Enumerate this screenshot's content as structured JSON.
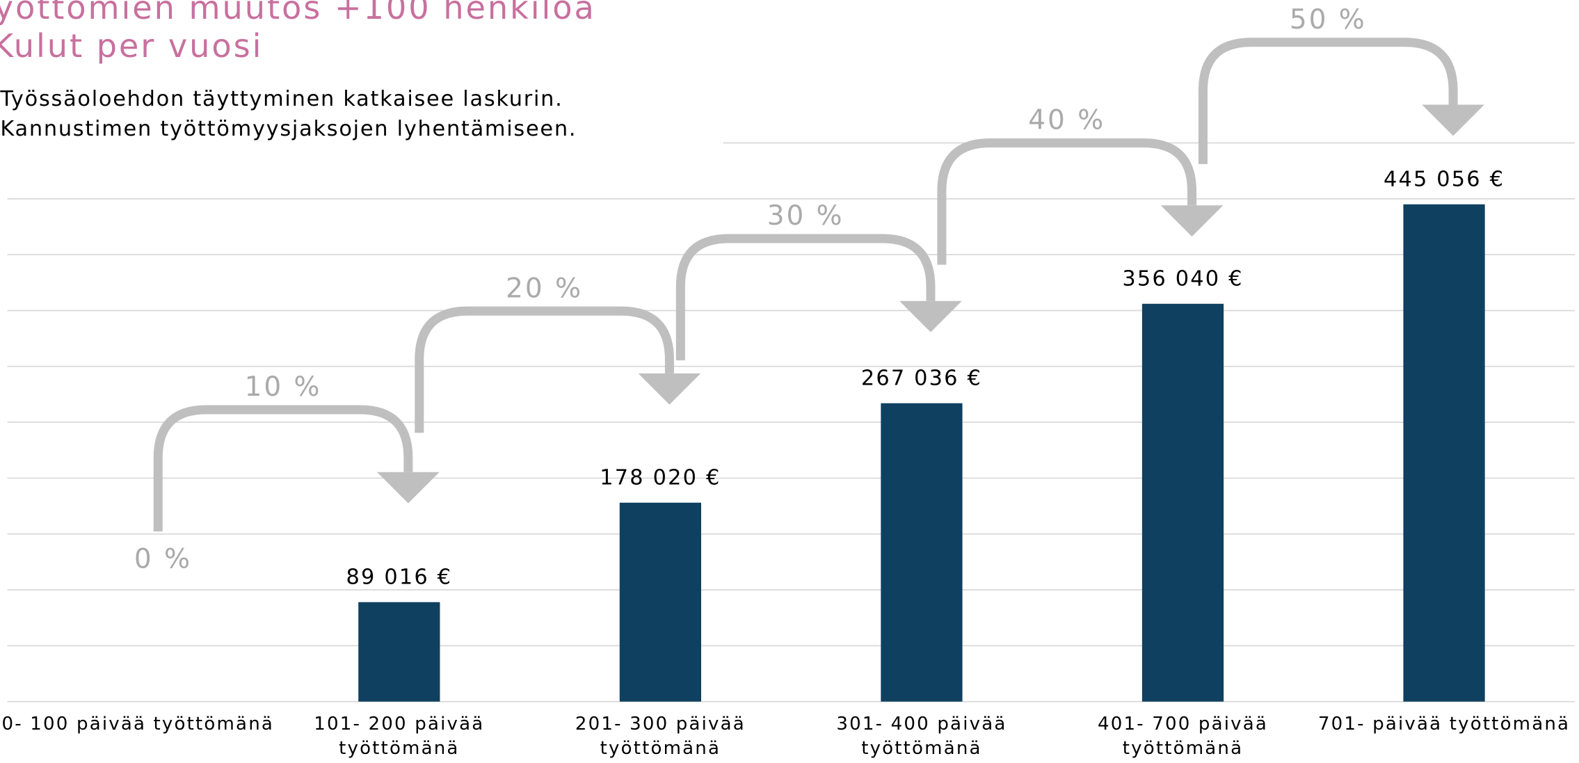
{
  "chart_data": {
    "type": "bar",
    "title": [
      "yöttömien muutos +100 henkilöa",
      "Kulut per vuosi"
    ],
    "subtitle": [
      "Työssäoloehdon täyttyminen katkaisee laskurin.",
      "Kannustimen työttömyysjaksojen lyhentämiseen."
    ],
    "categories": [
      "0- 100 päivää työttömänä",
      "101- 200 päivää työttömänä",
      "201- 300 päivää työttömänä",
      "301- 400 päivää työttömänä",
      "401- 700 päivää työttömänä",
      "701-  päivää työttömänä"
    ],
    "values": [
      null,
      89016,
      178020,
      267036,
      356040,
      445056
    ],
    "value_labels": [
      null,
      "89 016 €",
      "178 020 €",
      "267 036 €",
      "356 040 €",
      "445 056 €"
    ],
    "annotations": [
      "0 %",
      "10 %",
      "20 %",
      "30 %",
      "40 %",
      "50 %"
    ],
    "color": "#0f4060",
    "ylim": [
      0,
      500000
    ],
    "yticks": [
      0,
      50000,
      100000,
      150000,
      200000,
      250000,
      300000,
      350000,
      400000,
      450000,
      500000
    ],
    "grid": true
  }
}
